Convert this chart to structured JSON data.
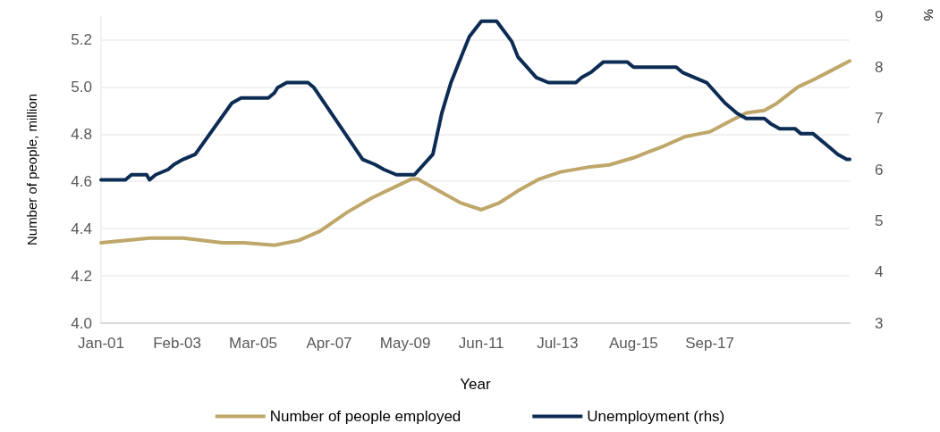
{
  "chart_data": {
    "type": "line",
    "xlabel": "Year",
    "ylabel": "Number of people, million",
    "y2label": "%",
    "xlim": [
      "2001-01",
      "2021-07"
    ],
    "xticks": [
      {
        "value": "2001-01",
        "label": "Jan-01"
      },
      {
        "value": "2003-02",
        "label": "Feb-03"
      },
      {
        "value": "2005-03",
        "label": "Mar-05"
      },
      {
        "value": "2007-04",
        "label": "Apr-07"
      },
      {
        "value": "2009-05",
        "label": "May-09"
      },
      {
        "value": "2011-06",
        "label": "Jun-11"
      },
      {
        "value": "2013-07",
        "label": "Jul-13"
      },
      {
        "value": "2015-08",
        "label": "Aug-15"
      },
      {
        "value": "2017-09",
        "label": "Sep-17"
      }
    ],
    "ylim": [
      4.0,
      5.3
    ],
    "yticks": [
      {
        "value": 4.0,
        "label": "4.0"
      },
      {
        "value": 4.2,
        "label": "4.2"
      },
      {
        "value": 4.4,
        "label": "4.4"
      },
      {
        "value": 4.6,
        "label": "4.6"
      },
      {
        "value": 4.8,
        "label": "4.8"
      },
      {
        "value": 5.0,
        "label": "5.0"
      },
      {
        "value": 5.2,
        "label": "5.2"
      }
    ],
    "y2lim": [
      3,
      9
    ],
    "y2ticks": [
      3,
      4,
      5,
      6,
      7,
      8,
      9
    ],
    "grid": "y",
    "legend": "bottom",
    "marker": "none",
    "line_style": "solid",
    "series": [
      {
        "name": "Number of people employed",
        "color": "#bfa76a",
        "x": [
          "2001-01",
          "2002-05",
          "2003-04",
          "2004-05",
          "2004-12",
          "2005-10",
          "2006-06",
          "2007-01",
          "2007-10",
          "2008-06",
          "2009-07",
          "2009-09",
          "2010-04",
          "2010-11",
          "2011-06",
          "2011-12",
          "2012-06",
          "2013-01",
          "2013-08",
          "2014-05",
          "2014-12",
          "2015-08",
          "2015-12",
          "2016-06",
          "2017-01",
          "2017-09",
          "2018-03",
          "2018-09",
          "2019-03",
          "2019-07",
          "2020-02",
          "2020-07",
          "2021-01",
          "2021-07"
        ],
        "values": [
          4.34,
          4.36,
          4.36,
          4.34,
          4.34,
          4.33,
          4.35,
          4.39,
          4.47,
          4.53,
          4.61,
          4.61,
          4.56,
          4.51,
          4.48,
          4.51,
          4.56,
          4.61,
          4.64,
          4.66,
          4.67,
          4.7,
          4.72,
          4.75,
          4.79,
          4.81,
          4.85,
          4.89,
          4.9,
          4.93,
          5.0,
          5.03,
          5.07,
          5.11
        ]
      },
      {
        "name": "Unemployment (rhs)",
        "color": "#0d2c54",
        "axis": "y2",
        "x": [
          "2001-01",
          "2001-09",
          "2001-11",
          "2002-04",
          "2002-05",
          "2002-07",
          "2002-11",
          "2003-01",
          "2003-04",
          "2003-08",
          "2004-08",
          "2004-11",
          "2005-08",
          "2005-10",
          "2005-11",
          "2006-02",
          "2006-09",
          "2006-11",
          "2008-03",
          "2008-07",
          "2008-10",
          "2009-02",
          "2009-08",
          "2010-02",
          "2010-05",
          "2010-08",
          "2010-12",
          "2011-02",
          "2011-06",
          "2011-11",
          "2012-04",
          "2012-06",
          "2012-09",
          "2012-12",
          "2013-04",
          "2014-01",
          "2014-03",
          "2014-06",
          "2014-10",
          "2015-06",
          "2015-08",
          "2016-10",
          "2016-12",
          "2017-04",
          "2017-08",
          "2018-02",
          "2018-06",
          "2018-09",
          "2019-03",
          "2019-05",
          "2019-08",
          "2020-01",
          "2020-03",
          "2020-07",
          "2021-01",
          "2021-03",
          "2021-06",
          "2021-07"
        ],
        "values": [
          5.8,
          5.8,
          5.9,
          5.9,
          5.8,
          5.9,
          6.0,
          6.1,
          6.2,
          6.3,
          7.3,
          7.4,
          7.4,
          7.5,
          7.6,
          7.7,
          7.7,
          7.6,
          6.2,
          6.1,
          6.0,
          5.9,
          5.9,
          6.3,
          7.1,
          7.7,
          8.3,
          8.6,
          8.9,
          8.9,
          8.5,
          8.2,
          8.0,
          7.8,
          7.7,
          7.7,
          7.8,
          7.9,
          8.1,
          8.1,
          8.0,
          8.0,
          7.9,
          7.8,
          7.7,
          7.3,
          7.1,
          7.0,
          7.0,
          6.9,
          6.8,
          6.8,
          6.7,
          6.7,
          6.4,
          6.3,
          6.2,
          6.2
        ]
      }
    ]
  }
}
